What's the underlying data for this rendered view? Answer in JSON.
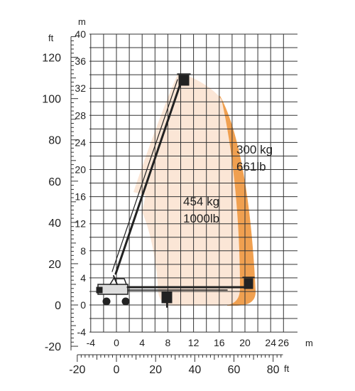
{
  "units": {
    "metric": "m",
    "imperial": "ft"
  },
  "y_axis_m": {
    "ticks": [
      -4,
      0,
      4,
      8,
      12,
      16,
      20,
      24,
      28,
      32,
      36,
      40
    ]
  },
  "y_axis_ft": {
    "ticks": [
      -20,
      0,
      20,
      40,
      60,
      80,
      100,
      120
    ]
  },
  "x_axis_m": {
    "ticks": [
      -4,
      0,
      4,
      8,
      12,
      16,
      20,
      24,
      26
    ]
  },
  "x_axis_ft": {
    "ticks": [
      -20,
      0,
      20,
      40,
      60,
      80
    ]
  },
  "zones": [
    {
      "id": "zone-454",
      "label_kg": "454 kg",
      "label_lb": "1000lb",
      "color": "#fbe6d6"
    },
    {
      "id": "zone-300",
      "label_kg": "300 kg",
      "label_lb": "661lb",
      "color": "#f0a050"
    }
  ],
  "colors": {
    "grid": "#333333",
    "boom": "#222222"
  }
}
